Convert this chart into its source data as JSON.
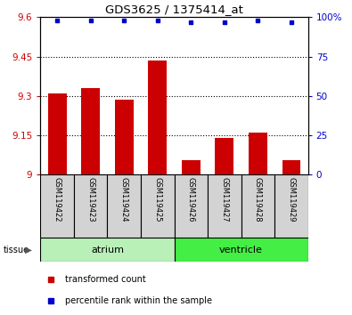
{
  "title": "GDS3625 / 1375414_at",
  "samples": [
    "GSM119422",
    "GSM119423",
    "GSM119424",
    "GSM119425",
    "GSM119426",
    "GSM119427",
    "GSM119428",
    "GSM119429"
  ],
  "bar_values": [
    9.31,
    9.33,
    9.285,
    9.437,
    9.055,
    9.14,
    9.16,
    9.055
  ],
  "percentile_values": [
    98,
    98,
    98,
    98,
    97,
    97,
    98,
    97
  ],
  "ymin": 9.0,
  "ymax": 9.6,
  "yticks": [
    9.0,
    9.15,
    9.3,
    9.45,
    9.6
  ],
  "ytick_labels": [
    "9",
    "9.15",
    "9.3",
    "9.45",
    "9.6"
  ],
  "right_yticks": [
    0,
    25,
    50,
    75,
    100
  ],
  "right_ytick_labels": [
    "0",
    "25",
    "50",
    "75",
    "100%"
  ],
  "bar_color": "#cc0000",
  "dot_color": "#0000cc",
  "atrium_color": "#b8f0b8",
  "ventricle_color": "#44ee44",
  "tissue_label": "tissue",
  "legend_entries": [
    "transformed count",
    "percentile rank within the sample"
  ],
  "bar_width": 0.55,
  "tick_label_color_left": "#cc0000",
  "tick_label_color_right": "#0000cc",
  "grid_yticks": [
    9.15,
    9.3,
    9.45
  ],
  "n_atrium": 4,
  "n_ventricle": 4
}
